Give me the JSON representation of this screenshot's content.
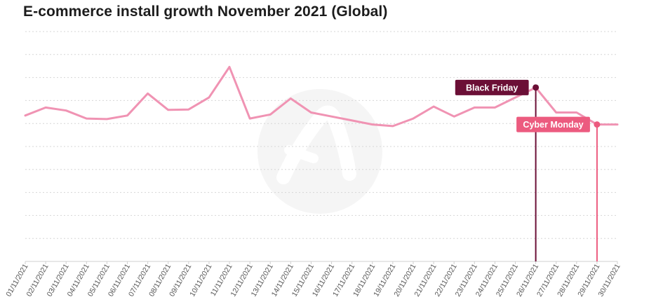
{
  "chart_data": {
    "type": "line",
    "title": "E-commerce install growth November 2021 (Global)",
    "xlabel": "",
    "ylabel": "",
    "categories": [
      "01/11/2021",
      "02/11/2021",
      "03/11/2021",
      "04/11/2021",
      "05/11/2021",
      "06/11/2021",
      "07/11/2021",
      "08/11/2021",
      "09/11/2021",
      "10/11/2021",
      "11/11/2021",
      "12/11/2021",
      "13/11/2021",
      "14/11/2021",
      "15/11/2021",
      "16/11/2021",
      "17/11/2021",
      "18/11/2021",
      "19/11/2021",
      "20/11/2021",
      "21/11/2021",
      "22/11/2021",
      "23/11/2021",
      "24/11/2021",
      "25/11/2021",
      "26/11/2021",
      "27/11/2021",
      "28/11/2021",
      "29/11/2021",
      "30/11/2021"
    ],
    "series": [
      {
        "values": [
          73,
          77,
          75.5,
          71.5,
          71.2,
          73,
          84,
          75.8,
          76,
          82,
          97.3,
          71.5,
          73.5,
          81.5,
          74.5,
          72.5,
          70.5,
          68.5,
          67.7,
          71.5,
          77.5,
          72.5,
          77,
          77,
          82,
          87,
          74.5,
          74.5,
          68.5,
          68.5
        ]
      }
    ],
    "ylim": [
      0,
      115
    ],
    "grid": true,
    "grid_lines": 10,
    "annotations": [
      {
        "text": "Black Friday",
        "category": "26/11/2021",
        "color": "#6b0f36"
      },
      {
        "text": "Cyber Monday",
        "category": "29/11/2021",
        "color": "#ec5b7f"
      }
    ],
    "line_color": "#f093b3",
    "watermark": "adjust-logo"
  }
}
